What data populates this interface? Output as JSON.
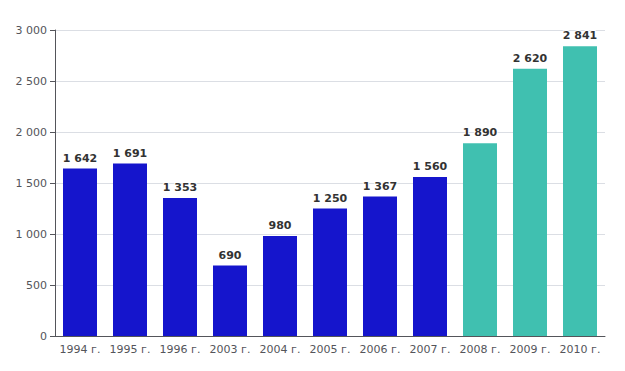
{
  "chart_data": {
    "type": "bar",
    "categories": [
      "1994 г.",
      "1995 г.",
      "1996 г.",
      "2003 г.",
      "2004 г.",
      "2005 г.",
      "2006 г.",
      "2007 г.",
      "2008 г.",
      "2009 г.",
      "2010 г."
    ],
    "values": [
      1642,
      1691,
      1353,
      690,
      980,
      1250,
      1367,
      1560,
      1890,
      2620,
      2841
    ],
    "value_labels": [
      "1 642",
      "1 691",
      "1 353",
      "690",
      "980",
      "1 250",
      "1 367",
      "1 560",
      "1 890",
      "2 620",
      "2 841"
    ],
    "colors": [
      "#1515CC",
      "#1515CC",
      "#1515CC",
      "#1515CC",
      "#1515CC",
      "#1515CC",
      "#1515CC",
      "#1515CC",
      "#40C0B0",
      "#40C0B0",
      "#40C0B0"
    ],
    "ylim": [
      0,
      3000
    ],
    "yticks": [
      0,
      500,
      {
        "value": 1000,
        "label": "1 000"
      },
      {
        "value": 1500,
        "label": "1 500"
      },
      {
        "value": 2000,
        "label": "2 000"
      },
      {
        "value": 2500,
        "label": "2 500"
      },
      {
        "value": 3000,
        "label": "3 000"
      }
    ],
    "grid": true,
    "data_labels": true
  }
}
